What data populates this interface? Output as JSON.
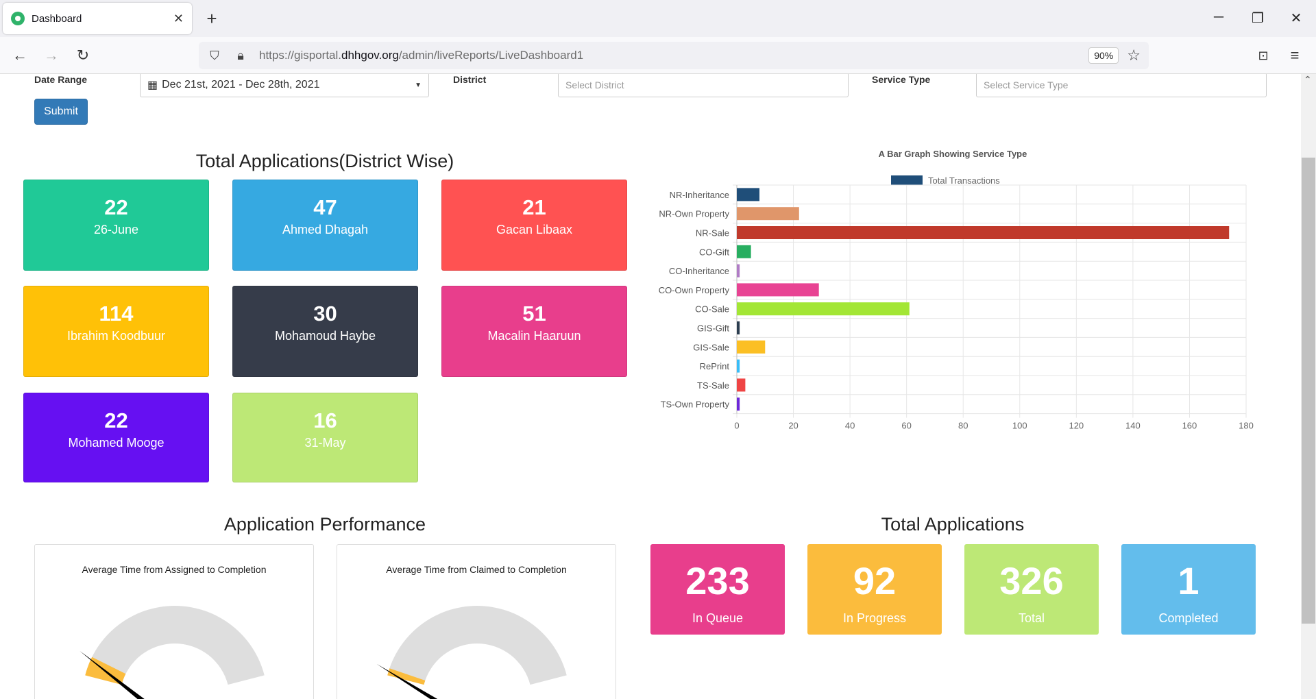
{
  "browser": {
    "tab_title": "Dashboard",
    "url_prefix": "https://gisportal.",
    "url_host": "dhhgov.org",
    "url_path": "/admin/liveReports/LiveDashboard1",
    "zoom": "90%"
  },
  "filters": {
    "date_range_label": "Date Range",
    "date_range_value": "Dec 21st, 2021 - Dec 28th, 2021",
    "district_label": "District",
    "district_placeholder": "Select District",
    "service_type_label": "Service Type",
    "service_type_placeholder": "Select Service Type",
    "submit_label": "Submit"
  },
  "district_section": {
    "title": "Total Applications(District Wise)",
    "cards": [
      {
        "value": "22",
        "label": "26-June",
        "color": "#20c997"
      },
      {
        "value": "47",
        "label": "Ahmed Dhagah",
        "color": "#36a9e1"
      },
      {
        "value": "21",
        "label": "Gacan Libaax",
        "color": "#ff5252"
      },
      {
        "value": "114",
        "label": "Ibrahim Koodbuur",
        "color": "#ffc107"
      },
      {
        "value": "30",
        "label": "Mohamoud Haybe",
        "color": "#363c4a"
      },
      {
        "value": "51",
        "label": "Macalin Haaruun",
        "color": "#e83e8c"
      },
      {
        "value": "22",
        "label": "Mohamed Mooge",
        "color": "#6610f2"
      },
      {
        "value": "16",
        "label": "31-May",
        "color": "#bde876"
      }
    ]
  },
  "chart_data": {
    "type": "bar",
    "orientation": "horizontal",
    "title": "A Bar Graph Showing Service Type",
    "legend": [
      "Total Transactions"
    ],
    "legend_placement": "top",
    "categories": [
      "NR-Inheritance",
      "NR-Own Property",
      "NR-Sale",
      "CO-Gift",
      "CO-Inheritance",
      "CO-Own Property",
      "CO-Sale",
      "GIS-Gift",
      "GIS-Sale",
      "RePrint",
      "TS-Sale",
      "TS-Own Property"
    ],
    "series": [
      {
        "name": "Total Transactions",
        "values": [
          8,
          22,
          174,
          5,
          1,
          29,
          61,
          1,
          10,
          1,
          3,
          1
        ]
      }
    ],
    "colors": [
      "#1f4e79",
      "#e0966a",
      "#c0392b",
      "#27ae60",
      "#b07cc6",
      "#e84393",
      "#a3e635",
      "#2c3e50",
      "#fbbf24",
      "#38bdf8",
      "#ef4444",
      "#6d28d9"
    ],
    "xlim": [
      0,
      180
    ],
    "xticks": [
      0,
      20,
      40,
      60,
      80,
      100,
      120,
      140,
      160,
      180
    ],
    "grid": true
  },
  "performance": {
    "title": "Application Performance",
    "gauges": [
      {
        "title": "Average Time from Assigned to Completion",
        "needle_fraction": 0.08
      },
      {
        "title": "Average Time from Claimed to Completion",
        "needle_fraction": 0.03
      }
    ]
  },
  "totals": {
    "title": "Total Applications",
    "cards": [
      {
        "value": "233",
        "label": "In Queue",
        "color": "#e83e8c"
      },
      {
        "value": "92",
        "label": "In Progress",
        "color": "#fbbc3d"
      },
      {
        "value": "326",
        "label": "Total",
        "color": "#bde876"
      },
      {
        "value": "1",
        "label": "Completed",
        "color": "#63bdec"
      }
    ]
  }
}
